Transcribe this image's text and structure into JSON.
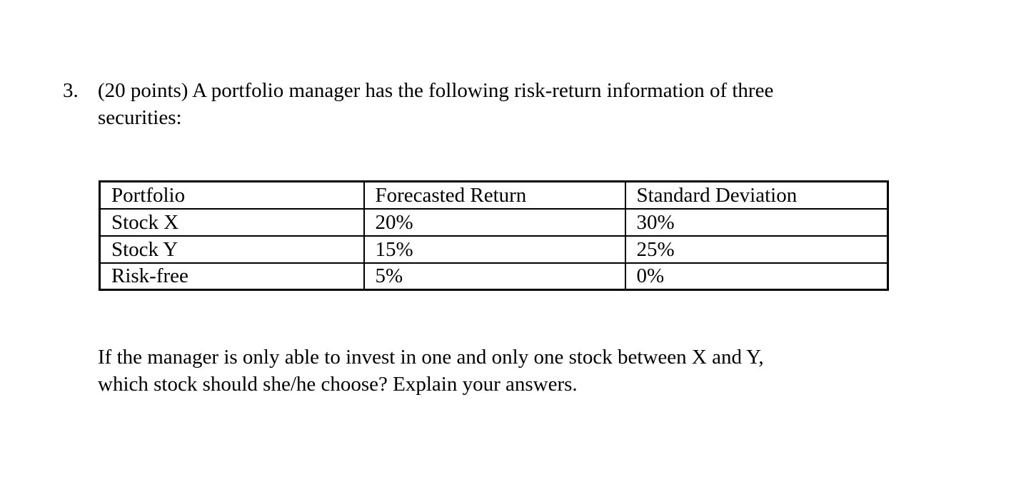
{
  "question": {
    "number": "3.",
    "lines": [
      "(20 points) A portfolio manager has the following risk-return information of three",
      "securities:"
    ]
  },
  "table": {
    "headers": [
      "Portfolio",
      "Forecasted Return",
      "Standard Deviation"
    ],
    "rows": [
      [
        "Stock X",
        "20%",
        "30%"
      ],
      [
        "Stock Y",
        "15%",
        "25%"
      ],
      [
        "Risk-free",
        "5%",
        "0%"
      ]
    ]
  },
  "followup": {
    "lines": [
      "If the manager is only able to invest in one and only one stock between X and Y,",
      "which stock should she/he choose? Explain your answers."
    ]
  },
  "colors": {
    "text": "#000000",
    "background": "#ffffff",
    "table_border": "#000000"
  }
}
